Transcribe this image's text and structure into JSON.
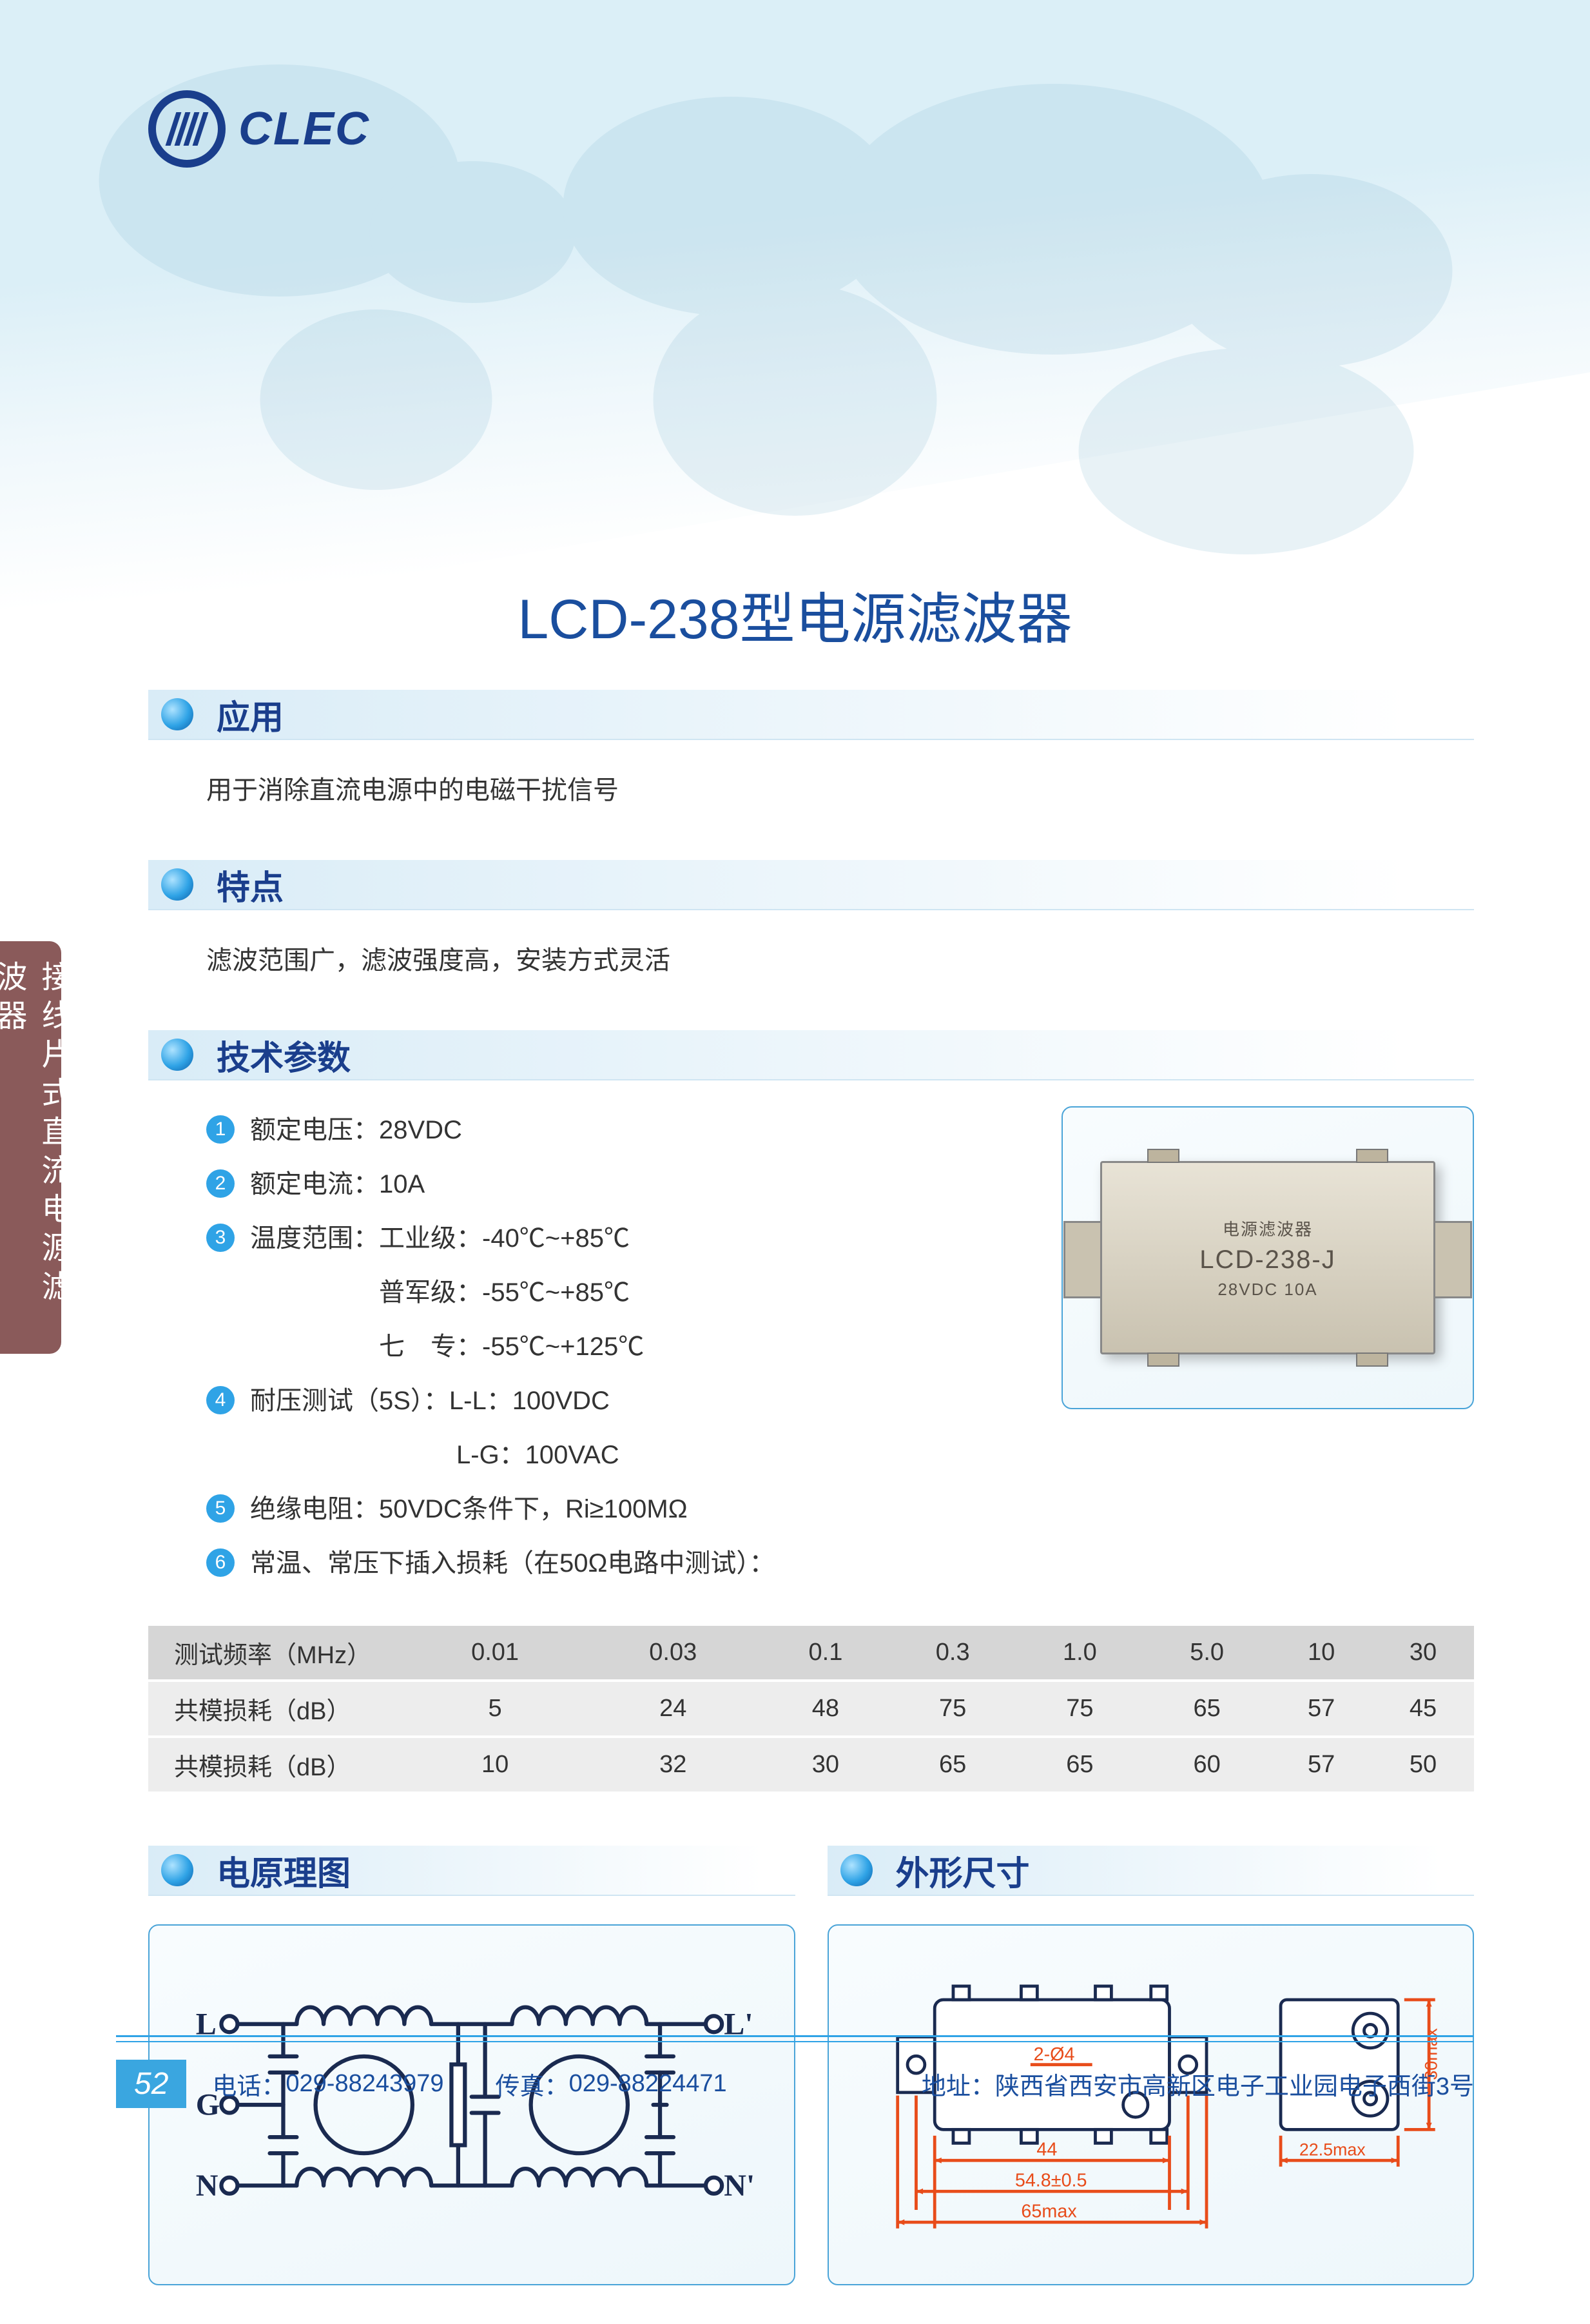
{
  "logo": {
    "text": "CLEC"
  },
  "page_title": "LCD-238型电源滤波器",
  "side_tab": "接线片式直流电源滤波器",
  "sections": {
    "app": {
      "title": "应用",
      "body": "用于消除直流电源中的电磁干扰信号"
    },
    "feat": {
      "title": "特点",
      "body": "滤波范围广，滤波强度高，安装方式灵活"
    },
    "spec": {
      "title": "技术参数"
    },
    "circuit": {
      "title": "电原理图"
    },
    "dims": {
      "title": "外形尺寸"
    }
  },
  "specs": [
    {
      "n": "1",
      "t": "额定电压：28VDC"
    },
    {
      "n": "2",
      "t": "额定电流：10A"
    },
    {
      "n": "3",
      "t": "温度范围：工业级：-40℃~+85℃"
    },
    {
      "n": "",
      "t": "　　　　　普军级：-55℃~+85℃"
    },
    {
      "n": "",
      "t": "　　　　　七　专：-55℃~+125℃"
    },
    {
      "n": "4",
      "t": "耐压测试（5S）：L-L：100VDC"
    },
    {
      "n": "",
      "t": "　　　　　　　　L-G：100VAC"
    },
    {
      "n": "5",
      "t": "绝缘电阻：50VDC条件下，Ri≥100MΩ"
    },
    {
      "n": "6",
      "t": "常温、常压下插入损耗（在50Ω电路中测试）："
    }
  ],
  "product_label": {
    "l1": "电源滤波器",
    "l2": "LCD-238-J",
    "l3": "28VDC  10A"
  },
  "loss_table": {
    "columns": [
      "测试频率（MHz）",
      "0.01",
      "0.03",
      "0.1",
      "0.3",
      "1.0",
      "5.0",
      "10",
      "30"
    ],
    "rows": [
      [
        "共模损耗（dB）",
        "5",
        "24",
        "48",
        "75",
        "75",
        "65",
        "57",
        "45"
      ],
      [
        "共模损耗（dB）",
        "10",
        "32",
        "30",
        "65",
        "65",
        "60",
        "57",
        "50"
      ]
    ],
    "header_bg": "#d6d6d6",
    "row_bg": "#ededed"
  },
  "circuit": {
    "labels": {
      "L": "L",
      "G": "G",
      "N": "N",
      "Lp": "L'",
      "Np": "N'"
    },
    "stroke": "#1a2a50",
    "fontsize": 46
  },
  "dims": {
    "stroke": "#1a2a50",
    "accent": "#e84c1a",
    "labels": {
      "hole": "2-Ø4",
      "w1": "44",
      "w2": "54.8±0.5",
      "w3": "65max",
      "side_w": "22.5max",
      "side_h": "30max"
    }
  },
  "footer": {
    "page": "52",
    "tel_label": "电话：",
    "tel": "029-88243979",
    "fax_label": "传真：",
    "fax": "029-88224471",
    "addr_label": "地址：",
    "addr": "陕西省西安市高新区电子工业园电子西街3号"
  },
  "colors": {
    "brand": "#1a3e8c",
    "accent": "#2fa3e6",
    "bar_grad_from": "#d9ecf7",
    "frame_border": "#4aa4d8",
    "side_tab": "#8a5a5a"
  }
}
